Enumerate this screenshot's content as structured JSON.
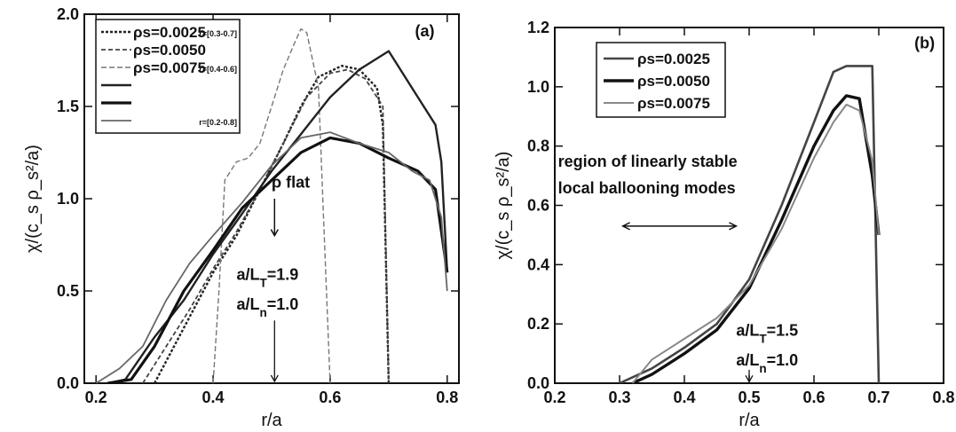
{
  "chart_data": [
    {
      "type": "line",
      "panel": "(a)",
      "xlabel": "r/a",
      "ylabel": "χ/(c_s ρ_s²/a)",
      "xlim": [
        0.18,
        0.82
      ],
      "ylim": [
        0,
        2.0
      ],
      "xticks": [
        "0.2",
        "0.4",
        "0.6",
        "0.8"
      ],
      "xtick_values": [
        0.2,
        0.4,
        0.6,
        0.8
      ],
      "yticks": [
        "0.0",
        "0.5",
        "1.0",
        "1.5",
        "2.0"
      ],
      "ytick_values": [
        0,
        0.5,
        1.0,
        1.5,
        2.0
      ],
      "legend_position": "top-left",
      "legend": [
        {
          "label": "ρs=0.0025",
          "range": "r=[0.3-0.7]",
          "dash": "3,2",
          "color": "#222",
          "width": 2.4
        },
        {
          "label": "ρs=0.0050",
          "range": "",
          "dash": "5,3",
          "color": "#444",
          "width": 1.8
        },
        {
          "label": "ρs=0.0075",
          "range": "r=[0.4-0.6]",
          "dash": "6,3",
          "color": "#777",
          "width": 1.4
        },
        {
          "label": "",
          "range": "",
          "dash": "",
          "color": "#222",
          "width": 2.4
        },
        {
          "label": "",
          "range": "",
          "dash": "",
          "color": "#111",
          "width": 3.2
        },
        {
          "label": "",
          "range": "r=[0.2-0.8]",
          "dash": "",
          "color": "#666",
          "width": 1.8
        }
      ],
      "series": [
        {
          "dash": "3,2",
          "color": "#222",
          "width": 2.4,
          "x": [
            0.3,
            0.33,
            0.36,
            0.4,
            0.44,
            0.48,
            0.52,
            0.55,
            0.58,
            0.62,
            0.65,
            0.68,
            0.69,
            0.7
          ],
          "y": [
            0.0,
            0.18,
            0.36,
            0.6,
            0.8,
            1.05,
            1.3,
            1.5,
            1.66,
            1.72,
            1.7,
            1.6,
            1.4,
            0.0
          ]
        },
        {
          "dash": "5,3",
          "color": "#444",
          "width": 1.8,
          "x": [
            0.28,
            0.32,
            0.36,
            0.4,
            0.44,
            0.48,
            0.52,
            0.56,
            0.6,
            0.63,
            0.66,
            0.69,
            0.7
          ],
          "y": [
            0.0,
            0.2,
            0.4,
            0.62,
            0.82,
            1.05,
            1.3,
            1.55,
            1.68,
            1.7,
            1.65,
            1.5,
            0.0
          ]
        },
        {
          "dash": "6,3",
          "color": "#777",
          "width": 1.4,
          "x": [
            0.4,
            0.41,
            0.42,
            0.44,
            0.46,
            0.48,
            0.5,
            0.52,
            0.54,
            0.55,
            0.56,
            0.58,
            0.59,
            0.6
          ],
          "y": [
            0.0,
            0.5,
            1.1,
            1.2,
            1.22,
            1.3,
            1.5,
            1.7,
            1.85,
            1.92,
            1.9,
            1.6,
            0.8,
            0.0
          ]
        },
        {
          "dash": "",
          "color": "#222",
          "width": 2.4,
          "x": [
            0.22,
            0.25,
            0.3,
            0.35,
            0.4,
            0.45,
            0.5,
            0.55,
            0.6,
            0.65,
            0.7,
            0.75,
            0.78,
            0.79,
            0.8
          ],
          "y": [
            0.0,
            0.02,
            0.25,
            0.45,
            0.7,
            0.92,
            1.15,
            1.35,
            1.55,
            1.7,
            1.8,
            1.55,
            1.4,
            1.2,
            0.6
          ]
        },
        {
          "dash": "",
          "color": "#111",
          "width": 3.2,
          "x": [
            0.22,
            0.26,
            0.3,
            0.35,
            0.4,
            0.45,
            0.5,
            0.55,
            0.6,
            0.65,
            0.7,
            0.75,
            0.78,
            0.8
          ],
          "y": [
            0.0,
            0.02,
            0.2,
            0.5,
            0.72,
            0.95,
            1.1,
            1.25,
            1.33,
            1.3,
            1.22,
            1.15,
            1.05,
            0.6
          ]
        },
        {
          "dash": "",
          "color": "#666",
          "width": 1.8,
          "x": [
            0.2,
            0.24,
            0.28,
            0.32,
            0.36,
            0.4,
            0.45,
            0.5,
            0.55,
            0.6,
            0.65,
            0.7,
            0.74,
            0.77,
            0.79,
            0.8
          ],
          "y": [
            0.0,
            0.08,
            0.2,
            0.45,
            0.65,
            0.8,
            0.98,
            1.18,
            1.33,
            1.36,
            1.3,
            1.25,
            1.15,
            1.1,
            0.9,
            0.5
          ]
        }
      ],
      "annotations": [
        {
          "text": "(a)",
          "x": 0.745,
          "y": 1.88
        },
        {
          "text": "a/L_T=1.9",
          "x": 0.44,
          "y": 0.56
        },
        {
          "text": "a/L_n=1.0",
          "x": 0.44,
          "y": 0.4
        },
        {
          "text": "ρ flat",
          "x": 0.5,
          "y": 1.06
        }
      ]
    },
    {
      "type": "line",
      "panel": "(b)",
      "xlabel": "r/a",
      "ylabel": "χ/(c_s ρ_s²/a)",
      "xlim": [
        0.2,
        0.8
      ],
      "ylim": [
        0,
        1.2
      ],
      "xticks": [
        "0.2",
        "0.3",
        "0.4",
        "0.5",
        "0.6",
        "0.7",
        "0.8"
      ],
      "xtick_values": [
        0.2,
        0.3,
        0.4,
        0.5,
        0.6,
        0.7,
        0.8
      ],
      "yticks": [
        "0.0",
        "0.2",
        "0.4",
        "0.6",
        "0.8",
        "1.0",
        "1.2"
      ],
      "ytick_values": [
        0,
        0.2,
        0.4,
        0.6,
        0.8,
        1.0,
        1.2
      ],
      "legend_position": "top-left",
      "legend": [
        {
          "label": "ρs=0.0025",
          "color": "#444",
          "width": 2.6
        },
        {
          "label": "ρs=0.0050",
          "color": "#111",
          "width": 3.4
        },
        {
          "label": "ρs=0.0075",
          "color": "#888",
          "width": 2.0
        }
      ],
      "series": [
        {
          "name": "ρs=0.0025",
          "color": "#444",
          "width": 2.6,
          "x": [
            0.3,
            0.35,
            0.4,
            0.45,
            0.5,
            0.55,
            0.6,
            0.63,
            0.65,
            0.67,
            0.69,
            0.7
          ],
          "y": [
            0.0,
            0.05,
            0.12,
            0.2,
            0.35,
            0.6,
            0.88,
            1.05,
            1.07,
            1.07,
            1.07,
            0.0
          ]
        },
        {
          "name": "ρs=0.0050",
          "color": "#111",
          "width": 3.4,
          "x": [
            0.32,
            0.35,
            0.4,
            0.45,
            0.5,
            0.55,
            0.6,
            0.63,
            0.65,
            0.67,
            0.69,
            0.7
          ],
          "y": [
            0.0,
            0.03,
            0.1,
            0.18,
            0.32,
            0.55,
            0.8,
            0.92,
            0.97,
            0.96,
            0.7,
            0.5
          ]
        },
        {
          "name": "ρs=0.0075",
          "color": "#888",
          "width": 2.0,
          "x": [
            0.32,
            0.35,
            0.4,
            0.45,
            0.5,
            0.55,
            0.6,
            0.63,
            0.65,
            0.67,
            0.69,
            0.7
          ],
          "y": [
            0.0,
            0.08,
            0.15,
            0.22,
            0.33,
            0.52,
            0.76,
            0.88,
            0.94,
            0.92,
            0.75,
            0.5
          ]
        }
      ],
      "annotations": [
        {
          "text": "(b)",
          "x": 0.755,
          "y": 1.13
        },
        {
          "text": "region of linearly stable",
          "x": 0.205,
          "y": 0.73
        },
        {
          "text": "local ballooning modes",
          "x": 0.205,
          "y": 0.64
        },
        {
          "text": "a/L_T=1.5",
          "x": 0.48,
          "y": 0.16
        },
        {
          "text": "a/L_n=1.0",
          "x": 0.48,
          "y": 0.06
        }
      ]
    }
  ]
}
